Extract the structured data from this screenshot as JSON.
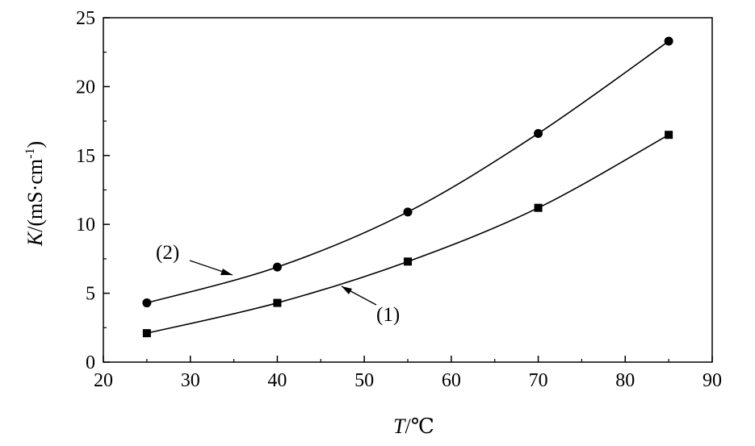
{
  "chart_data": {
    "type": "line",
    "title": "",
    "x": [
      25,
      40,
      55,
      70,
      85
    ],
    "series": [
      {
        "name": "(1)",
        "marker": "square",
        "values": [
          2.1,
          4.3,
          7.3,
          11.2,
          16.5
        ]
      },
      {
        "name": "(2)",
        "marker": "circle",
        "values": [
          4.3,
          6.9,
          10.9,
          16.6,
          23.3
        ]
      }
    ],
    "xlabel": {
      "italic": "T",
      "rest": "/℃"
    },
    "ylabel": {
      "italic": "K",
      "rest": "/(mS·cm",
      "sup": "-1",
      "close": ")"
    },
    "xlim": [
      20,
      90
    ],
    "ylim": [
      0,
      25
    ],
    "xticks": [
      20,
      30,
      40,
      50,
      60,
      70,
      80,
      90
    ],
    "yticks": [
      0,
      5,
      10,
      15,
      20,
      25
    ],
    "grid": false,
    "annotations": [
      "(1)",
      "(2)"
    ]
  }
}
